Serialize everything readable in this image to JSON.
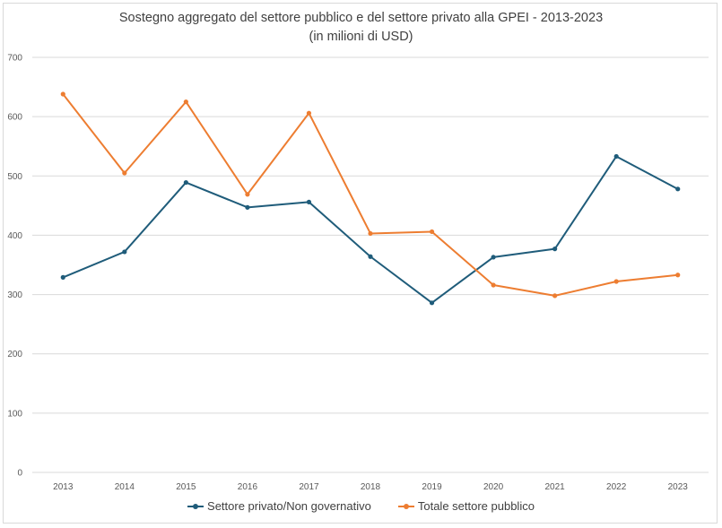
{
  "chart_data": {
    "type": "line",
    "title": "Sostegno aggregato del settore pubblico e del settore privato alla GPEI  - 2013-2023",
    "subtitle": "(in milioni di USD)",
    "xlabel": "",
    "ylabel": "",
    "x": [
      "2013",
      "2014",
      "2015",
      "2016",
      "2017",
      "2018",
      "2019",
      "2020",
      "2021",
      "2022",
      "2023"
    ],
    "y_ticks": [
      "0",
      "100",
      "200",
      "300",
      "400",
      "500",
      "600",
      "700"
    ],
    "ylim": [
      0,
      700
    ],
    "grid": "horizontal",
    "legend_position": "bottom",
    "series": [
      {
        "name": "Settore privato/Non governativo",
        "color": "#1f5c7a",
        "values": [
          329,
          372,
          489,
          447,
          456,
          364,
          286,
          363,
          377,
          533,
          478
        ]
      },
      {
        "name": "Totale settore pubblico",
        "color": "#ed7d31",
        "values": [
          638,
          505,
          625,
          469,
          606,
          403,
          406,
          316,
          298,
          322,
          333
        ]
      }
    ]
  }
}
